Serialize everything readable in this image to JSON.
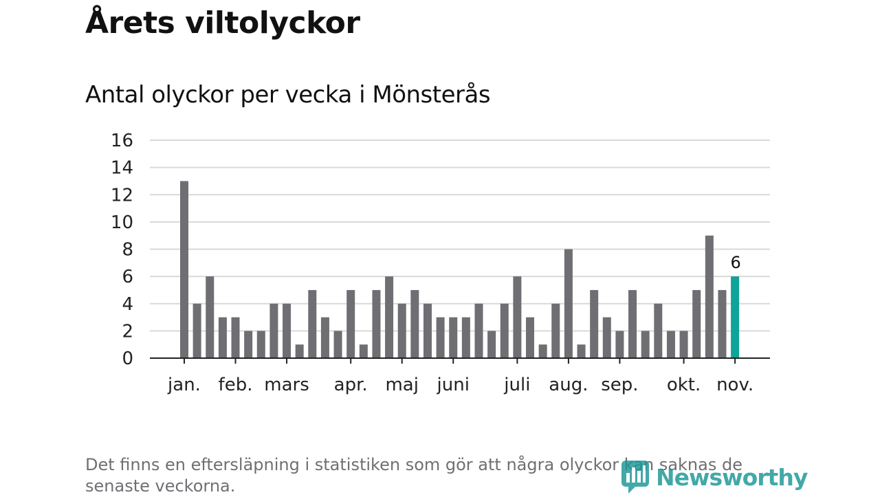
{
  "header": {
    "title": "Årets viltolyckor"
  },
  "chart_data": {
    "type": "bar",
    "title": "Antal olyckor per vecka i Mönsterås",
    "ylim": [
      0,
      16
    ],
    "yticks": [
      0,
      2,
      4,
      6,
      8,
      10,
      12,
      14,
      16
    ],
    "grid": true,
    "values": [
      13,
      4,
      6,
      3,
      3,
      2,
      2,
      4,
      4,
      1,
      5,
      3,
      2,
      5,
      1,
      5,
      6,
      4,
      5,
      4,
      3,
      3,
      3,
      4,
      2,
      4,
      6,
      3,
      1,
      4,
      8,
      1,
      5,
      3,
      2,
      5,
      2,
      4,
      2,
      2,
      5,
      9,
      5,
      6
    ],
    "months": [
      {
        "label": "jan.",
        "week": 0
      },
      {
        "label": "feb.",
        "week": 4
      },
      {
        "label": "mars",
        "week": 8
      },
      {
        "label": "apr.",
        "week": 13
      },
      {
        "label": "maj",
        "week": 17
      },
      {
        "label": "juni",
        "week": 21
      },
      {
        "label": "juli",
        "week": 26
      },
      {
        "label": "aug.",
        "week": 30
      },
      {
        "label": "sep.",
        "week": 34
      },
      {
        "label": "okt.",
        "week": 39
      },
      {
        "label": "nov.",
        "week": 43
      }
    ],
    "highlight": {
      "index": 43,
      "label": "6"
    },
    "colors": {
      "bar": "#6e6e73",
      "highlight": "#0fa39a",
      "grid": "#d9d9d9",
      "axis": "#222222"
    }
  },
  "footnote": "Det finns en eftersläpning i statistiken som gör att några olyckor kan saknas de senaste veckorna.",
  "logo": {
    "text": "Newsworthy",
    "icon": "newsworthy-logo-icon"
  }
}
